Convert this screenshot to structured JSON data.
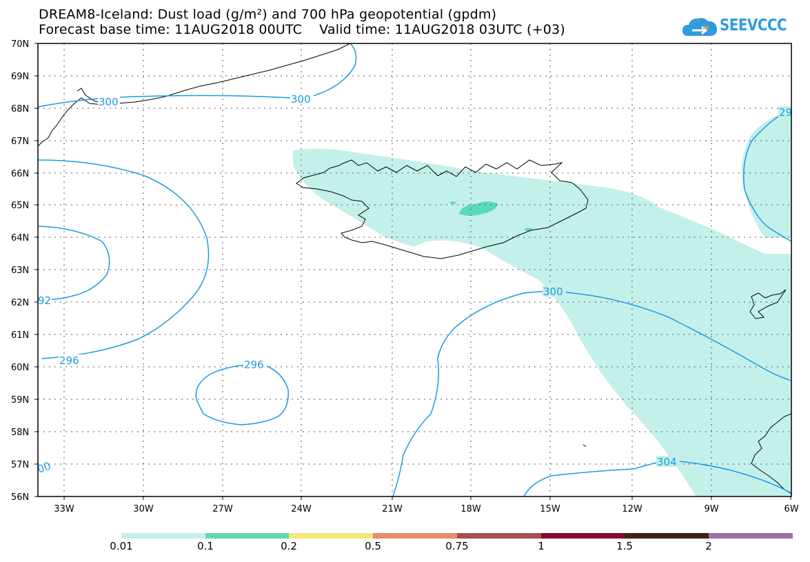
{
  "title": {
    "line1": "DREAM8-Iceland: Dust load (g/m²) and 700 hPa geopotential (gpdm)",
    "line2": "Forecast base time: 11AUG2018 00UTC    Valid time: 11AUG2018 03UTC (+03)"
  },
  "logo": {
    "text": "SEEVCCC",
    "icon": "cloud-icon"
  },
  "axes": {
    "lat_labels": [
      "70N",
      "69N",
      "68N",
      "67N",
      "66N",
      "65N",
      "64N",
      "63N",
      "62N",
      "61N",
      "60N",
      "59N",
      "58N",
      "57N",
      "56N"
    ],
    "lon_labels": [
      "33W",
      "30W",
      "27W",
      "24W",
      "21W",
      "18W",
      "15W",
      "12W",
      "9W",
      "6W"
    ]
  },
  "contour_labels": {
    "c300_nw": "300",
    "c300_n": "300",
    "c29_e": "29",
    "c92_w": "92",
    "c296_w": "296",
    "c296_c": "296",
    "c300_s": "300",
    "c304": "304",
    "c00_sw": "00"
  },
  "legend": {
    "labels": [
      "0.01",
      "0.1",
      "0.2",
      "0.5",
      "0.75",
      "1",
      "1.5",
      "2"
    ],
    "colors": [
      "#c4f0ea",
      "#5bdbb5",
      "#f5e87a",
      "#e58e6a",
      "#a25050",
      "#820c30",
      "#3c2414",
      "#9e6fa5"
    ]
  },
  "colors": {
    "contour": "#1a9ae5",
    "dust_low": "#c4f0ea",
    "dust_mid": "#5bdbb5"
  }
}
